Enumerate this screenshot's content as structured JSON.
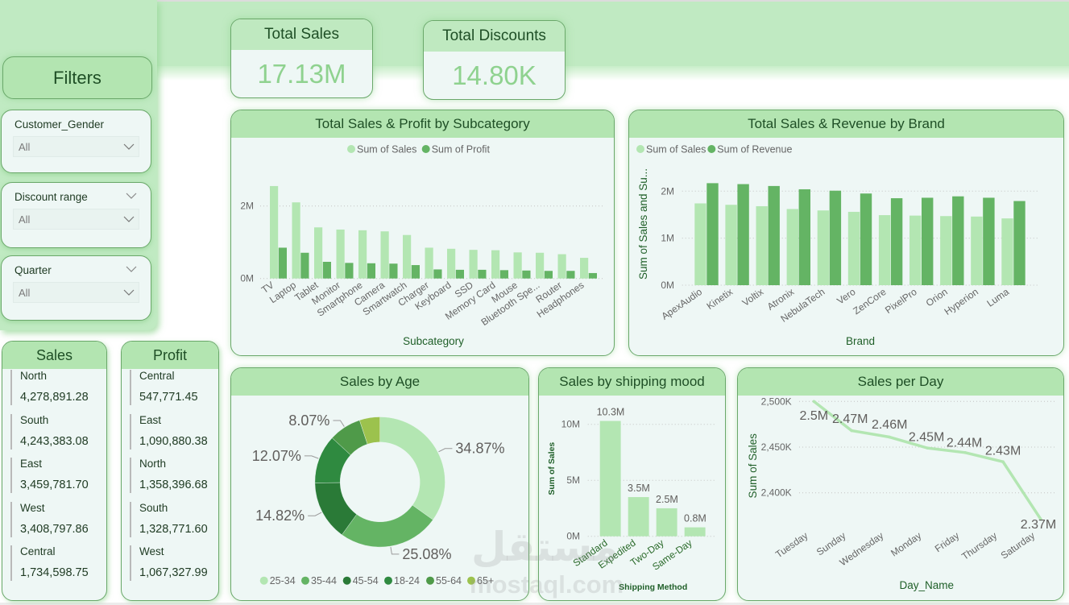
{
  "theme": {
    "band_color": "#c0eac2",
    "card_header": "#b3e5b1",
    "card_body": "#eef7f5",
    "border": "#6aa86a",
    "title_text": "#1f4f26",
    "kpi_value": "#8fd28f"
  },
  "filters": {
    "title": "Filters",
    "slicers": [
      {
        "label": "Customer_Gender",
        "value": "All",
        "icon": "chevron-down-icon"
      },
      {
        "label": "Discount range",
        "value": "All",
        "icon": "chevron-down-icon"
      },
      {
        "label": "Quarter",
        "value": "All",
        "icon": "chevron-down-icon"
      }
    ]
  },
  "kpis": [
    {
      "title": "Total Sales",
      "value": "17.13M"
    },
    {
      "title": "Total Discounts",
      "value": "14.80K"
    }
  ],
  "sales_card": {
    "title": "Sales",
    "items": [
      {
        "name": "North",
        "value": "4,278,891.28"
      },
      {
        "name": "South",
        "value": "4,243,383.08"
      },
      {
        "name": "East",
        "value": "3,459,781.70"
      },
      {
        "name": "West",
        "value": "3,408,797.86"
      },
      {
        "name": "Central",
        "value": "1,734,598.75"
      }
    ]
  },
  "profit_card": {
    "title": "Profit",
    "items": [
      {
        "name": "Central",
        "value": "547,771.45"
      },
      {
        "name": "East",
        "value": "1,090,880.38"
      },
      {
        "name": "North",
        "value": "1,358,396.68"
      },
      {
        "name": "South",
        "value": "1,328,771.60"
      },
      {
        "name": "West",
        "value": "1,067,327.99"
      }
    ]
  },
  "chart_data": [
    {
      "type": "bar",
      "title": "Total Sales & Profit by Subcategory",
      "xlabel": "Subcategory",
      "ylabel": "",
      "categories": [
        "TV",
        "Laptop",
        "Tablet",
        "Monitor",
        "Smartphone",
        "Camera",
        "Smartwatch",
        "Charger",
        "Keyboard",
        "SSD",
        "Memory Card",
        "Mouse",
        "Bluetooth Spe...",
        "Router",
        "Headphones"
      ],
      "series": [
        {
          "name": "Sum of Sales",
          "color": "#b3e6b2",
          "values": [
            2550000,
            2100000,
            1410000,
            1350000,
            1330000,
            1300000,
            1200000,
            850000,
            820000,
            790000,
            780000,
            720000,
            710000,
            670000,
            570000
          ]
        },
        {
          "name": "Sum of Profit",
          "color": "#64b464",
          "values": [
            850000,
            710000,
            460000,
            430000,
            420000,
            410000,
            370000,
            250000,
            240000,
            240000,
            230000,
            220000,
            210000,
            210000,
            150000
          ]
        }
      ],
      "yticks": [
        0,
        2000000
      ],
      "ytick_labels": [
        "0M",
        "2M"
      ],
      "ylim": [
        0,
        2800000
      ],
      "grid": true,
      "legend": "top-center"
    },
    {
      "type": "bar",
      "title": "Total Sales & Revenue by Brand",
      "xlabel": "Brand",
      "ylabel": "Sum of Sales and Su...",
      "categories": [
        "ApexAudio",
        "Kinetix",
        "Voltix",
        "Atronix",
        "NebulaTech",
        "Vero",
        "ZenCore",
        "PixelPro",
        "Orion",
        "Hyperion",
        "Luma"
      ],
      "series": [
        {
          "name": "Sum of Sales",
          "color": "#b3e6b2",
          "values": [
            1740000,
            1710000,
            1680000,
            1620000,
            1590000,
            1560000,
            1490000,
            1480000,
            1470000,
            1460000,
            1420000
          ]
        },
        {
          "name": "Sum of Revenue",
          "color": "#64b464",
          "values": [
            2170000,
            2150000,
            2110000,
            2040000,
            2010000,
            1950000,
            1850000,
            1860000,
            1890000,
            1860000,
            1790000
          ]
        }
      ],
      "yticks": [
        0,
        1000000,
        2000000
      ],
      "ytick_labels": [
        "0M",
        "1M",
        "2M"
      ],
      "ylim": [
        0,
        2400000
      ],
      "grid": true,
      "legend": "top-left"
    },
    {
      "type": "pie",
      "title": "Sales by Age",
      "labels": [
        "25-34",
        "35-44",
        "45-54",
        "18-24",
        "55-64",
        "65+"
      ],
      "values": [
        34.87,
        25.08,
        14.82,
        12.07,
        8.07,
        5.09
      ],
      "data_labels": [
        "34.87%",
        "25.08%",
        "14.82%",
        "12.07%",
        "8.07%",
        null
      ],
      "colors": [
        "#b3e6b2",
        "#64b464",
        "#2a7a37",
        "#2f8a40",
        "#4f9a49",
        "#9cc24d"
      ],
      "donut": true,
      "legend": "bottom"
    },
    {
      "type": "bar",
      "title": "Sales by shipping mood",
      "xlabel": "Shipping Method",
      "ylabel": "Sum of Sales",
      "categories": [
        "Standard",
        "Expedited",
        "Two-Day",
        "Same-Day"
      ],
      "series": [
        {
          "name": "Sum of Sales",
          "color": "#b3e6b2",
          "values": [
            10300000,
            3500000,
            2500000,
            800000
          ]
        }
      ],
      "data_labels": [
        "10.3M",
        "3.5M",
        "2.5M",
        "0.8M"
      ],
      "yticks": [
        0,
        5000000,
        10000000
      ],
      "ytick_labels": [
        "0M",
        "5M",
        "10M"
      ],
      "ylim": [
        0,
        11000000
      ],
      "grid": true
    },
    {
      "type": "line",
      "title": "Sales per Day",
      "xlabel": "Day_Name",
      "ylabel": "Sum of Sales",
      "categories": [
        "Tuesday",
        "Sunday",
        "Wednesday",
        "Monday",
        "Friday",
        "Thursday",
        "Saturday"
      ],
      "series": [
        {
          "name": "Sum of Sales",
          "color": "#b3e6b2",
          "values": [
            2500000,
            2468000,
            2461000,
            2449000,
            2444000,
            2434000,
            2371000
          ]
        }
      ],
      "data_labels": [
        "2.5M",
        "2.47M",
        "2.46M",
        "2.45M",
        "2.44M",
        "2.43M",
        "2.37M"
      ],
      "yticks": [
        2400000,
        2450000,
        2500000
      ],
      "ytick_labels": [
        "2,400K",
        "2,450K",
        "2,500K"
      ],
      "ylim": [
        2360000,
        2505000
      ],
      "grid": true
    }
  ],
  "watermark": {
    "arabic": "مستقل",
    "latin": "mostaql.com"
  }
}
